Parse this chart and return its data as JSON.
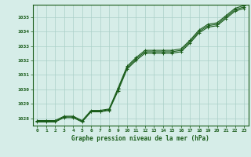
{
  "x": [
    0,
    1,
    2,
    3,
    4,
    5,
    6,
    7,
    8,
    9,
    10,
    11,
    12,
    13,
    14,
    15,
    16,
    17,
    18,
    19,
    20,
    21,
    22,
    23
  ],
  "y_main": [
    1027.8,
    1027.8,
    1027.8,
    1028.1,
    1028.1,
    1027.8,
    1028.5,
    1028.5,
    1028.6,
    1030.0,
    1031.5,
    1032.1,
    1032.6,
    1032.6,
    1032.6,
    1032.6,
    1032.7,
    1033.3,
    1034.0,
    1034.4,
    1034.5,
    1035.0,
    1035.5,
    1035.7
  ],
  "y_upper": [
    1027.85,
    1027.85,
    1027.85,
    1028.15,
    1028.15,
    1027.85,
    1028.55,
    1028.55,
    1028.65,
    1030.1,
    1031.6,
    1032.2,
    1032.7,
    1032.7,
    1032.7,
    1032.7,
    1032.8,
    1033.4,
    1034.1,
    1034.5,
    1034.6,
    1035.1,
    1035.6,
    1035.8
  ],
  "y_lower": [
    1027.75,
    1027.75,
    1027.75,
    1028.05,
    1028.05,
    1027.75,
    1028.45,
    1028.45,
    1028.55,
    1029.9,
    1031.4,
    1032.0,
    1032.5,
    1032.5,
    1032.5,
    1032.5,
    1032.6,
    1033.2,
    1033.9,
    1034.3,
    1034.4,
    1034.9,
    1035.4,
    1035.6
  ],
  "bg_color": "#d6ede8",
  "grid_color": "#aacfc8",
  "line_color": "#1a5c1a",
  "title": "Graphe pression niveau de la mer (hPa)",
  "ylabel_ticks": [
    1028,
    1029,
    1030,
    1031,
    1032,
    1033,
    1034,
    1035
  ],
  "xlim": [
    -0.5,
    23.5
  ],
  "ylim": [
    1027.5,
    1035.85
  ],
  "marker": "+",
  "marker_size": 3,
  "line_width": 0.8,
  "tick_fontsize": 4.5,
  "label_fontsize": 5.5
}
